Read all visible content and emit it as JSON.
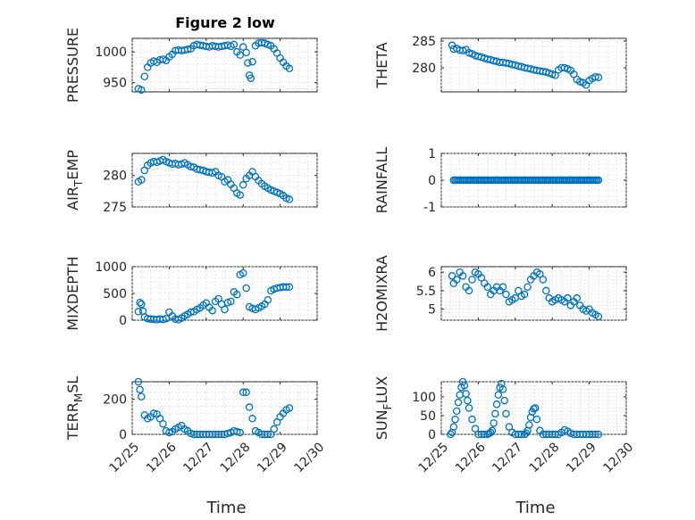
{
  "title": "Figure 2 low",
  "colors": {
    "marker": "#0072bd",
    "axis": "#262626",
    "grid": "#d9d9d9"
  },
  "chart_data": [
    {
      "type": "scatter",
      "marker": "circle-open",
      "grid": true,
      "ylabel": "PRESSURE",
      "xlabel": "",
      "xlim": [
        "12/25",
        "12/30"
      ],
      "ylim": [
        935,
        1022
      ],
      "yticks": [
        950,
        1000
      ],
      "show_xticklabels": false,
      "x": [
        "12/25 04:00",
        "12/25 06:00",
        "12/25 08:00",
        "12/25 10:00",
        "12/25 12:00",
        "12/25 14:00",
        "12/25 16:00",
        "12/25 18:00",
        "12/25 20:00",
        "12/25 22:00",
        "12/26 00:00",
        "12/26 02:00",
        "12/26 04:00",
        "12/26 06:00",
        "12/26 08:00",
        "12/26 10:00",
        "12/26 12:00",
        "12/26 14:00",
        "12/26 16:00",
        "12/26 18:00",
        "12/26 20:00",
        "12/26 22:00",
        "12/27 00:00",
        "12/27 02:00",
        "12/27 04:00",
        "12/27 06:00",
        "12/27 08:00",
        "12/27 10:00",
        "12/27 12:00",
        "12/27 14:00",
        "12/27 16:00",
        "12/27 18:00",
        "12/27 20:00",
        "12/27 22:00",
        "12/28 00:00",
        "12/28 02:00",
        "12/28 03:00",
        "12/28 04:00",
        "12/28 05:00",
        "12/28 06:00",
        "12/28 08:00",
        "12/28 10:00",
        "12/28 12:00",
        "12/28 14:00",
        "12/28 16:00",
        "12/28 18:00",
        "12/28 20:00",
        "12/28 22:00",
        "12/29 00:00",
        "12/29 02:00",
        "12/29 04:00",
        "12/29 06:00"
      ],
      "y": [
        940,
        938,
        960,
        975,
        982,
        985,
        983,
        987,
        988,
        986,
        992,
        996,
        1002,
        1003,
        1002,
        1003,
        1004,
        1005,
        1010,
        1012,
        1011,
        1010,
        1009,
        1008,
        1010,
        1009,
        1008,
        1009,
        1010,
        1011,
        1009,
        1012,
        1000,
        995,
        1008,
        999,
        982,
        962,
        957,
        984,
        1010,
        1014,
        1015,
        1014,
        1012,
        1010,
        1005,
        998,
        990,
        983,
        977,
        973
      ]
    },
    {
      "type": "scatter",
      "marker": "circle-open",
      "grid": true,
      "ylabel": "THETA",
      "xlabel": "",
      "xlim": [
        "12/25",
        "12/30"
      ],
      "ylim": [
        275.5,
        285.5
      ],
      "yticks": [
        275,
        280,
        285
      ],
      "show_xticklabels": false,
      "x": [
        "12/25 07:00",
        "12/25 08:00",
        "12/25 10:00",
        "12/25 12:00",
        "12/25 14:00",
        "12/25 16:00",
        "12/25 18:00",
        "12/25 20:00",
        "12/25 22:00",
        "12/26 00:00",
        "12/26 02:00",
        "12/26 04:00",
        "12/26 06:00",
        "12/26 08:00",
        "12/26 10:00",
        "12/26 12:00",
        "12/26 14:00",
        "12/26 16:00",
        "12/26 18:00",
        "12/26 20:00",
        "12/26 22:00",
        "12/27 00:00",
        "12/27 02:00",
        "12/27 04:00",
        "12/27 06:00",
        "12/27 08:00",
        "12/27 10:00",
        "12/27 12:00",
        "12/27 14:00",
        "12/27 16:00",
        "12/27 18:00",
        "12/27 20:00",
        "12/27 22:00",
        "12/28 00:00",
        "12/28 02:00",
        "12/28 04:00",
        "12/28 06:00",
        "12/28 08:00",
        "12/28 10:00",
        "12/28 12:00",
        "12/28 14:00",
        "12/28 16:00",
        "12/28 18:00",
        "12/28 20:00",
        "12/28 22:00",
        "12/29 00:00",
        "12/29 02:00",
        "12/29 04:00",
        "12/29 06:00"
      ],
      "y": [
        284.2,
        283.5,
        283.6,
        283.3,
        283.2,
        283.4,
        282.8,
        282.6,
        282.3,
        282.1,
        282.0,
        281.8,
        281.6,
        281.5,
        281.3,
        281.2,
        281.0,
        281.0,
        280.9,
        280.8,
        280.6,
        280.5,
        280.3,
        280.2,
        280.0,
        279.9,
        279.8,
        279.6,
        279.5,
        279.4,
        279.3,
        279.2,
        279.0,
        278.8,
        278.6,
        279.6,
        280.0,
        280.0,
        279.8,
        279.5,
        278.8,
        277.8,
        277.4,
        277.2,
        276.8,
        277.6,
        278.0,
        278.3,
        278.2
      ]
    },
    {
      "type": "scatter",
      "marker": "circle-open",
      "grid": true,
      "ylabel": "AIR_TEMP",
      "xlabel": "",
      "xlim": [
        "12/25",
        "12/30"
      ],
      "ylim": [
        275,
        283.5
      ],
      "yticks": [
        275,
        280
      ],
      "show_xticklabels": false,
      "x": [
        "12/25 04:00",
        "12/25 06:00",
        "12/25 08:00",
        "12/25 10:00",
        "12/25 12:00",
        "12/25 14:00",
        "12/25 16:00",
        "12/25 18:00",
        "12/25 20:00",
        "12/25 22:00",
        "12/26 00:00",
        "12/26 02:00",
        "12/26 04:00",
        "12/26 06:00",
        "12/26 08:00",
        "12/26 10:00",
        "12/26 12:00",
        "12/26 14:00",
        "12/26 16:00",
        "12/26 18:00",
        "12/26 20:00",
        "12/26 22:00",
        "12/27 00:00",
        "12/27 02:00",
        "12/27 04:00",
        "12/27 06:00",
        "12/27 08:00",
        "12/27 10:00",
        "12/27 12:00",
        "12/27 14:00",
        "12/27 16:00",
        "12/27 18:00",
        "12/27 20:00",
        "12/27 22:00",
        "12/28 00:00",
        "12/28 02:00",
        "12/28 04:00",
        "12/28 06:00",
        "12/28 08:00",
        "12/28 10:00",
        "12/28 12:00",
        "12/28 14:00",
        "12/28 16:00",
        "12/28 18:00",
        "12/28 20:00",
        "12/28 22:00",
        "12/29 00:00",
        "12/29 02:00",
        "12/29 04:00",
        "12/29 06:00"
      ],
      "y": [
        279.0,
        279.3,
        280.8,
        281.6,
        282.0,
        282.2,
        282.1,
        282.3,
        282.5,
        282.2,
        282.0,
        281.8,
        281.9,
        281.7,
        281.8,
        282.0,
        281.7,
        281.4,
        281.3,
        281.0,
        280.9,
        280.8,
        280.6,
        280.5,
        280.4,
        280.6,
        280.0,
        279.8,
        279.0,
        279.3,
        278.6,
        278.0,
        277.2,
        276.9,
        278.5,
        279.5,
        280.0,
        280.6,
        279.8,
        279.2,
        278.7,
        278.3,
        278.0,
        277.7,
        277.5,
        277.3,
        277.1,
        276.8,
        276.4,
        276.2
      ]
    },
    {
      "type": "scatter",
      "marker": "circle-open",
      "grid": true,
      "ylabel": "RAINFALL",
      "xlabel": "",
      "xlim": [
        "12/25",
        "12/30"
      ],
      "ylim": [
        -1,
        1
      ],
      "yticks": [
        -1,
        0,
        1
      ],
      "show_xticklabels": false,
      "x_range": [
        "12/25 08:00",
        "12/29 06:00"
      ],
      "samples": 95,
      "y_constant": 0
    },
    {
      "type": "scatter",
      "marker": "circle-open",
      "grid": true,
      "ylabel": "MIXDEPTH",
      "xlabel": "",
      "xlim": [
        "12/25",
        "12/30"
      ],
      "ylim": [
        0,
        1000
      ],
      "yticks": [
        0,
        500,
        1000
      ],
      "show_xticklabels": false,
      "x": [
        "12/25 04:00",
        "12/25 05:00",
        "12/25 06:00",
        "12/25 07:00",
        "12/25 08:00",
        "12/25 10:00",
        "12/25 12:00",
        "12/25 14:00",
        "12/25 16:00",
        "12/25 18:00",
        "12/25 20:00",
        "12/25 22:00",
        "12/26 00:00",
        "12/26 02:00",
        "12/26 04:00",
        "12/26 06:00",
        "12/26 08:00",
        "12/26 10:00",
        "12/26 12:00",
        "12/26 14:00",
        "12/26 16:00",
        "12/26 18:00",
        "12/26 20:00",
        "12/26 22:00",
        "12/27 00:00",
        "12/27 02:00",
        "12/27 04:00",
        "12/27 06:00",
        "12/27 08:00",
        "12/27 10:00",
        "12/27 12:00",
        "12/27 14:00",
        "12/27 16:00",
        "12/27 18:00",
        "12/27 20:00",
        "12/27 22:00",
        "12/28 00:00",
        "12/28 02:00",
        "12/28 04:00",
        "12/28 06:00",
        "12/28 08:00",
        "12/28 10:00",
        "12/28 12:00",
        "12/28 14:00",
        "12/28 16:00",
        "12/28 18:00",
        "12/28 20:00",
        "12/28 22:00",
        "12/29 00:00",
        "12/29 02:00",
        "12/29 04:00",
        "12/29 06:00"
      ],
      "y": [
        160,
        330,
        300,
        170,
        60,
        30,
        20,
        15,
        10,
        20,
        15,
        30,
        150,
        80,
        20,
        10,
        40,
        80,
        110,
        150,
        160,
        200,
        230,
        280,
        320,
        240,
        180,
        350,
        400,
        300,
        200,
        330,
        350,
        530,
        480,
        850,
        880,
        600,
        250,
        220,
        200,
        230,
        260,
        300,
        380,
        550,
        580,
        600,
        610,
        620,
        620,
        620
      ]
    },
    {
      "type": "scatter",
      "marker": "circle-open",
      "grid": true,
      "ylabel": "H2OMIXRA",
      "xlabel": "",
      "xlim": [
        "12/25",
        "12/30"
      ],
      "ylim": [
        4.7,
        6.15
      ],
      "yticks": [
        5,
        5.5,
        6
      ],
      "show_xticklabels": false,
      "x": [
        "12/25 07:00",
        "12/25 08:00",
        "12/25 10:00",
        "12/25 12:00",
        "12/25 14:00",
        "12/25 16:00",
        "12/25 18:00",
        "12/25 20:00",
        "12/25 22:00",
        "12/26 00:00",
        "12/26 02:00",
        "12/26 04:00",
        "12/26 06:00",
        "12/26 08:00",
        "12/26 10:00",
        "12/26 12:00",
        "12/26 14:00",
        "12/26 16:00",
        "12/26 18:00",
        "12/26 20:00",
        "12/26 22:00",
        "12/27 00:00",
        "12/27 02:00",
        "12/27 04:00",
        "12/27 06:00",
        "12/27 08:00",
        "12/27 10:00",
        "12/27 12:00",
        "12/27 14:00",
        "12/27 16:00",
        "12/27 18:00",
        "12/27 20:00",
        "12/27 22:00",
        "12/28 00:00",
        "12/28 02:00",
        "12/28 04:00",
        "12/28 06:00",
        "12/28 08:00",
        "12/28 10:00",
        "12/28 12:00",
        "12/28 14:00",
        "12/28 16:00",
        "12/28 18:00",
        "12/28 20:00",
        "12/28 22:00",
        "12/29 00:00",
        "12/29 02:00",
        "12/29 04:00",
        "12/29 06:00"
      ],
      "y": [
        5.9,
        5.7,
        5.8,
        6.0,
        5.9,
        5.6,
        5.5,
        5.8,
        6.0,
        5.95,
        5.85,
        5.7,
        5.6,
        5.4,
        5.5,
        5.6,
        5.5,
        5.6,
        5.4,
        5.2,
        5.25,
        5.3,
        5.5,
        5.35,
        5.4,
        5.6,
        5.8,
        5.9,
        6.0,
        5.95,
        5.8,
        5.5,
        5.3,
        5.2,
        5.25,
        5.3,
        5.25,
        5.2,
        5.3,
        5.1,
        5.2,
        5.3,
        5.1,
        5.0,
        4.95,
        5.0,
        4.9,
        4.85,
        4.8
      ]
    },
    {
      "type": "scatter",
      "marker": "circle-open",
      "grid": true,
      "ylabel": "TERR_MSL",
      "xlabel": "Time",
      "xlim": [
        "12/25",
        "12/30"
      ],
      "ylim": [
        0,
        300
      ],
      "yticks": [
        0,
        200
      ],
      "xticks": [
        "12/25",
        "12/26",
        "12/27",
        "12/28",
        "12/29",
        "12/30"
      ],
      "x": [
        "12/25 04:00",
        "12/25 05:00",
        "12/25 06:00",
        "12/25 08:00",
        "12/25 10:00",
        "12/25 12:00",
        "12/25 14:00",
        "12/25 16:00",
        "12/25 18:00",
        "12/25 20:00",
        "12/25 22:00",
        "12/26 00:00",
        "12/26 02:00",
        "12/26 04:00",
        "12/26 06:00",
        "12/26 08:00",
        "12/26 10:00",
        "12/26 12:00",
        "12/26 14:00",
        "12/26 16:00",
        "12/26 18:00",
        "12/26 20:00",
        "12/26 22:00",
        "12/27 00:00",
        "12/27 02:00",
        "12/27 04:00",
        "12/27 06:00",
        "12/27 08:00",
        "12/27 10:00",
        "12/27 12:00",
        "12/27 14:00",
        "12/27 16:00",
        "12/27 18:00",
        "12/27 20:00",
        "12/27 22:00",
        "12/28 00:00",
        "12/28 02:00",
        "12/28 04:00",
        "12/28 06:00",
        "12/28 08:00",
        "12/28 10:00",
        "12/28 12:00",
        "12/28 14:00",
        "12/28 16:00",
        "12/28 18:00",
        "12/28 20:00",
        "12/28 22:00",
        "12/29 00:00",
        "12/29 02:00",
        "12/29 04:00",
        "12/29 06:00"
      ],
      "y": [
        310,
        255,
        215,
        110,
        90,
        100,
        120,
        115,
        90,
        60,
        20,
        10,
        15,
        30,
        40,
        50,
        30,
        20,
        5,
        0,
        0,
        0,
        0,
        0,
        0,
        0,
        0,
        0,
        0,
        0,
        5,
        10,
        20,
        15,
        10,
        240,
        240,
        155,
        90,
        20,
        10,
        0,
        0,
        0,
        0,
        30,
        70,
        100,
        120,
        140,
        150
      ]
    },
    {
      "type": "scatter",
      "marker": "circle-open",
      "grid": true,
      "ylabel": "SUN_FLUX",
      "xlabel": "Time",
      "xlim": [
        "12/25",
        "12/30"
      ],
      "ylim": [
        0,
        140
      ],
      "yticks": [
        0,
        50,
        100
      ],
      "xticks": [
        "12/25",
        "12/26",
        "12/27",
        "12/28",
        "12/29",
        "12/30"
      ],
      "x": [
        "12/25 06:00",
        "12/25 07:00",
        "12/25 08:00",
        "12/25 09:00",
        "12/25 10:00",
        "12/25 11:00",
        "12/25 12:00",
        "12/25 13:00",
        "12/25 14:00",
        "12/25 15:00",
        "12/25 16:00",
        "12/25 17:00",
        "12/25 18:00",
        "12/25 20:00",
        "12/25 22:00",
        "12/26 00:00",
        "12/26 02:00",
        "12/26 04:00",
        "12/26 06:00",
        "12/26 07:00",
        "12/26 08:00",
        "12/26 09:00",
        "12/26 10:00",
        "12/26 11:00",
        "12/26 12:00",
        "12/26 13:00",
        "12/26 14:00",
        "12/26 15:00",
        "12/26 16:00",
        "12/26 17:00",
        "12/26 18:00",
        "12/26 20:00",
        "12/26 22:00",
        "12/27 00:00",
        "12/27 02:00",
        "12/27 04:00",
        "12/27 06:00",
        "12/27 07:00",
        "12/27 08:00",
        "12/27 09:00",
        "12/27 10:00",
        "12/27 11:00",
        "12/27 12:00",
        "12/27 13:00",
        "12/27 14:00",
        "12/27 16:00",
        "12/27 18:00",
        "12/27 20:00",
        "12/27 22:00",
        "12/28 00:00",
        "12/28 02:00",
        "12/28 04:00",
        "12/28 06:00",
        "12/28 08:00",
        "12/28 10:00",
        "12/28 12:00",
        "12/28 14:00",
        "12/28 16:00",
        "12/28 18:00",
        "12/28 20:00",
        "12/28 22:00",
        "12/29 00:00",
        "12/29 02:00",
        "12/29 04:00",
        "12/29 06:00"
      ],
      "y": [
        0,
        5,
        20,
        40,
        62,
        85,
        105,
        125,
        142,
        130,
        108,
        90,
        70,
        40,
        15,
        0,
        0,
        0,
        0,
        2,
        5,
        10,
        30,
        55,
        80,
        105,
        125,
        135,
        120,
        90,
        55,
        20,
        5,
        0,
        0,
        0,
        0,
        3,
        10,
        25,
        45,
        60,
        68,
        70,
        40,
        10,
        0,
        0,
        0,
        0,
        0,
        0,
        5,
        12,
        8,
        3,
        0,
        0,
        0,
        0,
        0,
        0,
        0,
        0,
        0
      ]
    }
  ]
}
